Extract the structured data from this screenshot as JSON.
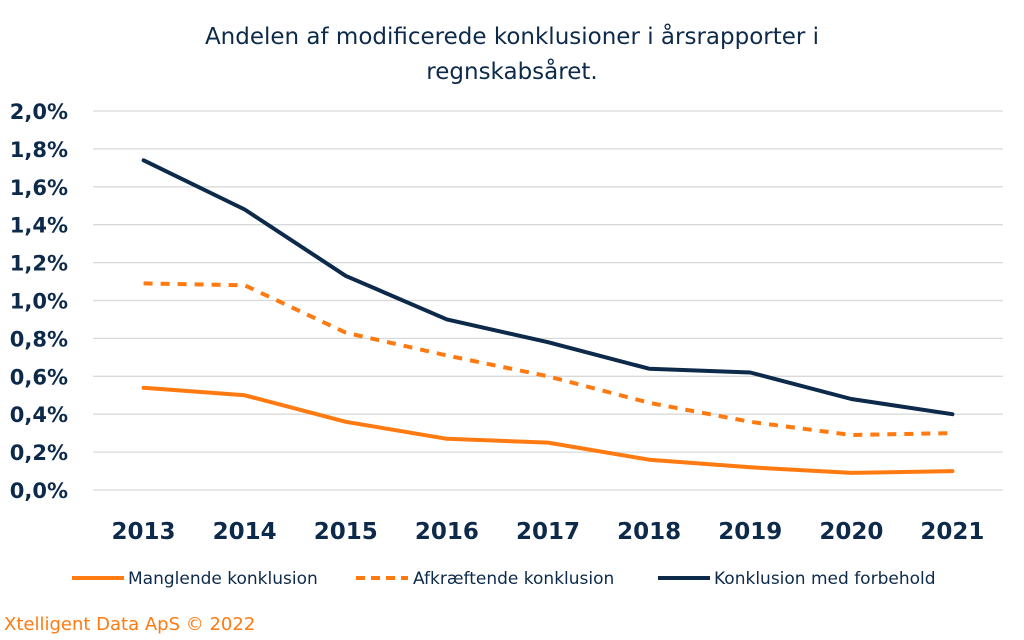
{
  "chart_data": {
    "type": "line",
    "title_lines": [
      "Andelen af modificerede konklusioner i årsrapporter i",
      "regnskabsåret."
    ],
    "xlabel": "",
    "ylabel": "",
    "categories": [
      "2013",
      "2014",
      "2015",
      "2016",
      "2017",
      "2018",
      "2019",
      "2020",
      "2021"
    ],
    "ylim": [
      0,
      2.0
    ],
    "yticks": [
      0.0,
      0.2,
      0.4,
      0.6,
      0.8,
      1.0,
      1.2,
      1.4,
      1.6,
      1.8,
      2.0
    ],
    "ytick_labels": [
      "0,0%",
      "0,2%",
      "0,4%",
      "0,6%",
      "0,8%",
      "1,0%",
      "1,2%",
      "1,4%",
      "1,6%",
      "1,8%",
      "2,0%"
    ],
    "grid": true,
    "legend_position": "bottom",
    "series": [
      {
        "name": "Manglende konklusion",
        "color": "#ff7a10",
        "style": "solid",
        "values": [
          0.54,
          0.5,
          0.36,
          0.27,
          0.25,
          0.16,
          0.12,
          0.09,
          0.1
        ]
      },
      {
        "name": "Afkræftende konklusion",
        "color": "#ff7a10",
        "style": "dashed",
        "values": [
          1.09,
          1.08,
          0.83,
          0.71,
          0.6,
          0.46,
          0.36,
          0.29,
          0.3
        ]
      },
      {
        "name": "Konklusion med forbehold",
        "color": "#0d2a4a",
        "style": "solid",
        "values": [
          1.74,
          1.48,
          1.13,
          0.9,
          0.78,
          0.64,
          0.62,
          0.48,
          0.4
        ]
      }
    ]
  },
  "footer": "Xtelligent Data ApS © 2022"
}
